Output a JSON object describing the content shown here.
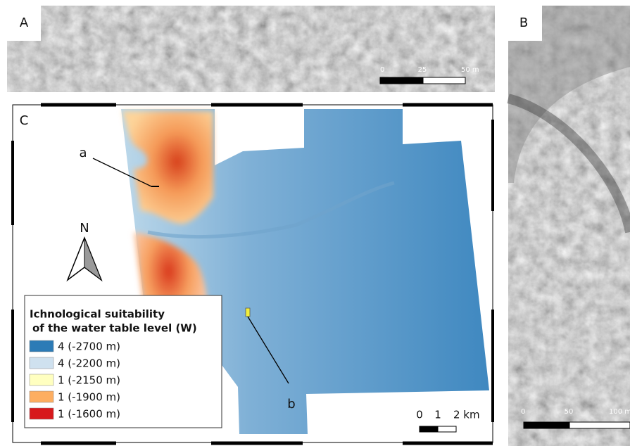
{
  "panels": {
    "a": {
      "label": "A",
      "scale": [
        "0",
        "25",
        "50 m"
      ]
    },
    "b": {
      "label": "B",
      "scale": [
        "0",
        "50",
        "100 m"
      ]
    },
    "c": {
      "label": "C",
      "point_a": "a",
      "point_b": "b",
      "north": "N",
      "scale": [
        "0",
        "1",
        "2 km"
      ],
      "legend": {
        "title": [
          "Ichnological suitability",
          "of the water table level (W)"
        ],
        "items": [
          {
            "label": "4 (-2700 m)",
            "color": "#2c7bb6"
          },
          {
            "label": "4 (-2200 m)",
            "color": "#cfe1ef"
          },
          {
            "label": "1 (-2150 m)",
            "color": "#ffffc0"
          },
          {
            "label": "1 (-1900 m)",
            "color": "#fdae61"
          },
          {
            "label": "1 (-1600 m)",
            "color": "#d7191c"
          }
        ]
      }
    }
  }
}
